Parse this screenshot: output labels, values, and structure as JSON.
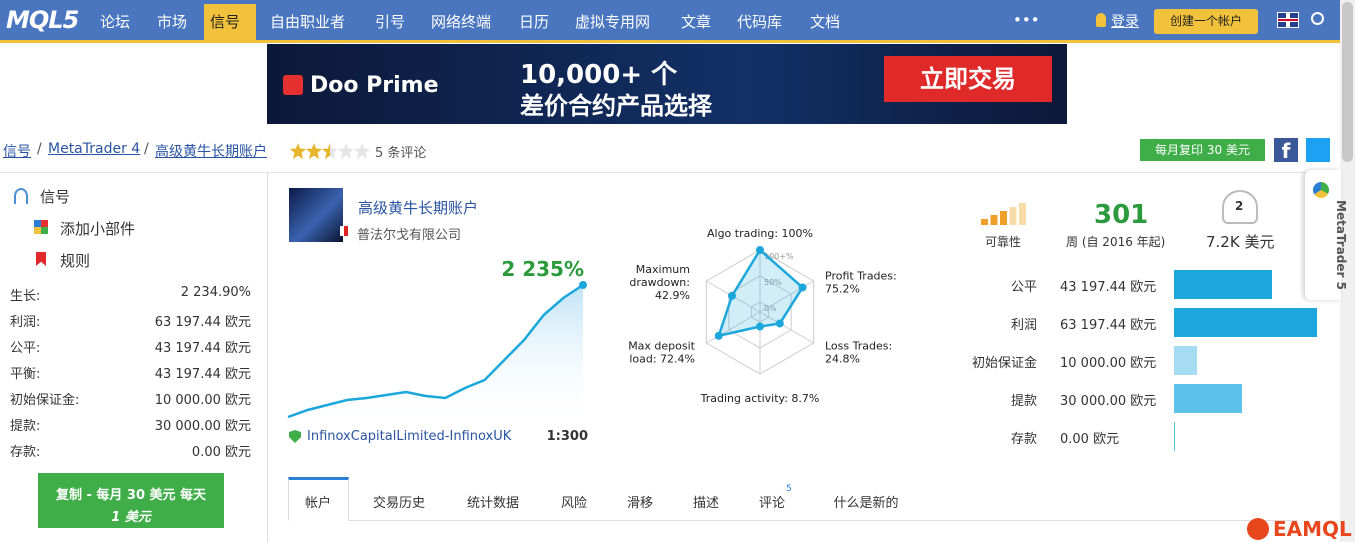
{
  "nav": {
    "logo": "MQL5",
    "items": [
      "论坛",
      "市场",
      "信号",
      "自由职业者",
      "引号",
      "网络终端",
      "日历",
      "虚拟专用网",
      "文章",
      "代码库",
      "文档"
    ],
    "active": 2,
    "more": "•••",
    "login": "登录",
    "create_account": "创建一个帐户"
  },
  "banner": {
    "brand": "Doo Prime",
    "headline": "10,000+ 个",
    "subline": "差价合约产品选择",
    "cta": "立即交易"
  },
  "breadcrumb": {
    "items": [
      "信号",
      "MetaTrader 4",
      "高级黄牛长期账户"
    ],
    "rating": 2.5,
    "reviews": "5 条评论",
    "subscribe": "每月复印 30 美元"
  },
  "sidebar": {
    "links": [
      "信号",
      "添加小部件",
      "规则"
    ],
    "stats": [
      [
        "生长:",
        "2 234.90%"
      ],
      [
        "利润:",
        "63 197.44 欧元"
      ],
      [
        "公平:",
        "43 197.44 欧元"
      ],
      [
        "平衡:",
        "43 197.44 欧元"
      ],
      [
        "初始保证金:",
        "10 000.00 欧元"
      ],
      [
        "提款:",
        "30 000.00 欧元"
      ],
      [
        "存款:",
        "0.00 欧元"
      ]
    ],
    "copy_button": [
      "复制 - 每月 30 美元 每天",
      "1 美元"
    ]
  },
  "signal": {
    "name": "高级黄牛长期账户",
    "company": "普法尔戈有限公司",
    "growth": "2 235%",
    "equity_curve": [
      0,
      119,
      203,
      288,
      322,
      372,
      423,
      355,
      322,
      491,
      626,
      965,
      1304,
      1727,
      2015,
      2235
    ],
    "broker": "InfinoxCapitalLimited-InfinoxUK",
    "leverage": "1:300"
  },
  "radar": {
    "rings": [
      {
        "value": 100,
        "label": "100+%"
      },
      {
        "value": 50,
        "label": "50%"
      },
      {
        "value": 0,
        "label": "0%"
      }
    ],
    "axes": [
      {
        "lines": [
          "Algo trading: 100%"
        ],
        "value": 100
      },
      {
        "lines": [
          "Profit Trades:",
          "75.2%"
        ],
        "value": 75.2
      },
      {
        "lines": [
          "Loss Trades:",
          "24.8%"
        ],
        "value": 24.8
      },
      {
        "lines": [
          "Trading activity: 8.7%"
        ],
        "value": 8.7
      },
      {
        "lines": [
          "Max deposit",
          "load: 72.4%"
        ],
        "value": 72.4
      },
      {
        "lines": [
          "Maximum",
          "drawdown:",
          "42.9%"
        ],
        "value": 42.9
      }
    ]
  },
  "summary": {
    "reliability_label": "可靠性",
    "weeks": "301",
    "weeks_label": "周 (自 2016 年起)",
    "subscribers": "2",
    "subscribers_funds": "7.2K 美元"
  },
  "money_bars": [
    {
      "label": "公平",
      "value": 43197.44,
      "value_label": "43 197.44 欧元",
      "color": "#1ba7dc"
    },
    {
      "label": "利润",
      "value": 63197.44,
      "value_label": "63 197.44 欧元",
      "color": "#1ba7dc"
    },
    {
      "label": "初始保证金",
      "value": 10000,
      "value_label": "10 000.00 欧元",
      "color": "#a6dcf2"
    },
    {
      "label": "提款",
      "value": 30000,
      "value_label": "30 000.00 欧元",
      "color": "#5cc2ea"
    },
    {
      "label": "存款",
      "value": 0,
      "value_label": "0.00 欧元",
      "color": "#5cc2ea"
    }
  ],
  "tabs": {
    "items": [
      "帐户",
      "交易历史",
      "统计数据",
      "风险",
      "滑移",
      "描述",
      "评论",
      "什么是新的"
    ],
    "active": 0,
    "badge": "5"
  },
  "side_tab": "MetaTrader 5",
  "watermark": "EAMQL"
}
